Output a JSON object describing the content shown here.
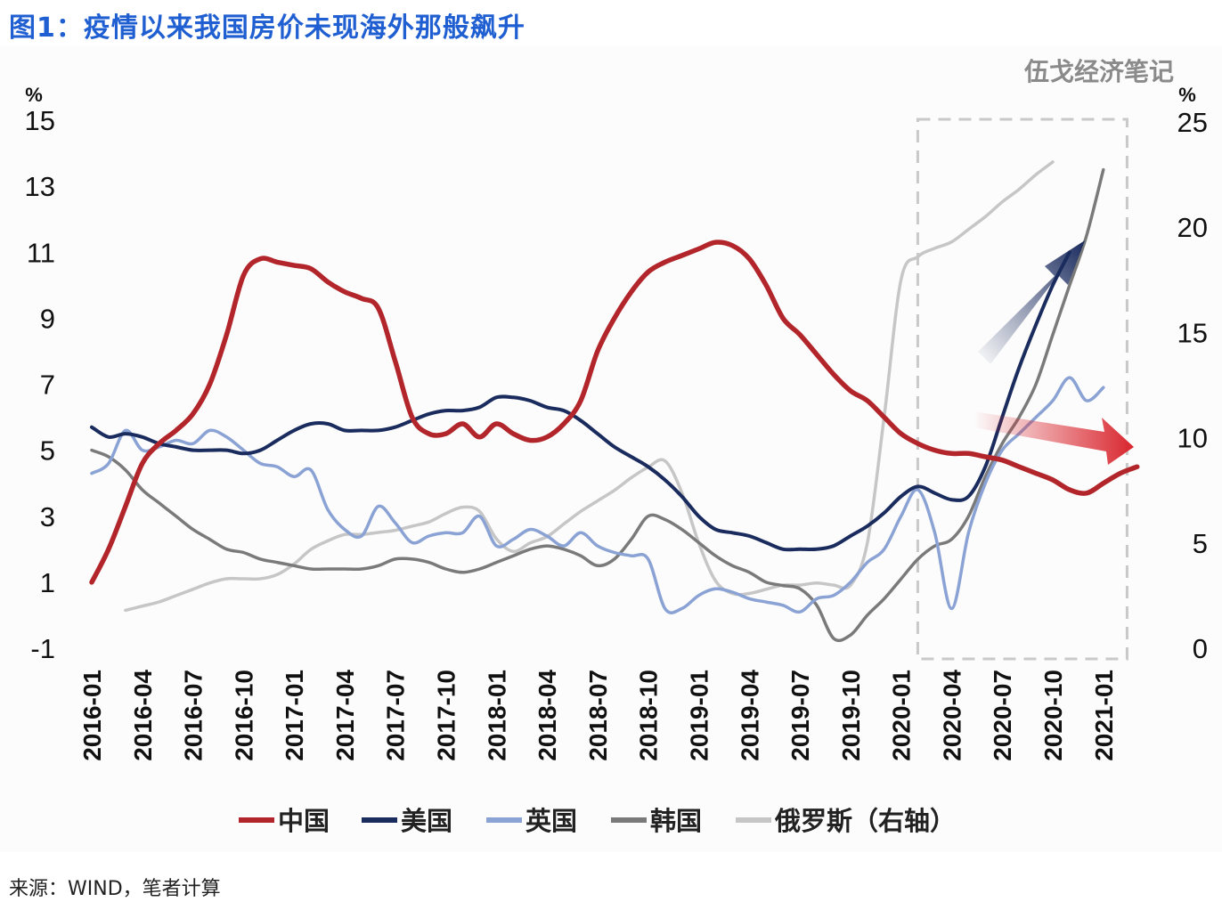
{
  "figure": {
    "title": "图1：疫情以来我国房价未现海外那般飙升",
    "source": "来源：WIND，笔者计算",
    "watermark": "伍戈经济笔记"
  },
  "chart_data": {
    "type": "line",
    "left_axis": {
      "unit": "%",
      "ticks": [
        "15",
        "13",
        "11",
        "9",
        "7",
        "5",
        "3",
        "1",
        "-1"
      ],
      "ylim": [
        -1,
        15
      ]
    },
    "right_axis": {
      "unit": "%",
      "ticks": [
        "25",
        "20",
        "15",
        "10",
        "5",
        "0"
      ],
      "ylim": [
        0,
        25
      ]
    },
    "x_ticks": [
      "2016-01",
      "2016-04",
      "2016-07",
      "2016-10",
      "2017-01",
      "2017-04",
      "2017-07",
      "2017-10",
      "2018-01",
      "2018-04",
      "2018-07",
      "2018-10",
      "2019-01",
      "2019-04",
      "2019-07",
      "2019-10",
      "2020-01",
      "2020-04",
      "2020-07",
      "2020-10",
      "2021-01"
    ],
    "series": [
      {
        "name": "中国",
        "axis": "left",
        "color": "#b2262b",
        "width": 5.5,
        "points": [
          [
            0,
            1.0
          ],
          [
            1,
            2.0
          ],
          [
            2,
            3.3
          ],
          [
            3,
            4.6
          ],
          [
            4,
            5.2
          ],
          [
            5,
            5.6
          ],
          [
            6,
            6.1
          ],
          [
            7,
            7.0
          ],
          [
            8,
            8.5
          ],
          [
            9,
            10.3
          ],
          [
            10,
            10.8
          ],
          [
            11,
            10.7
          ],
          [
            12,
            10.6
          ],
          [
            13,
            10.5
          ],
          [
            14,
            10.1
          ],
          [
            15,
            9.8
          ],
          [
            16,
            9.6
          ],
          [
            17,
            9.3
          ],
          [
            18,
            7.7
          ],
          [
            19,
            6.0
          ],
          [
            20,
            5.5
          ],
          [
            21,
            5.5
          ],
          [
            22,
            5.8
          ],
          [
            23,
            5.4
          ],
          [
            24,
            5.8
          ],
          [
            25,
            5.5
          ],
          [
            26,
            5.3
          ],
          [
            27,
            5.4
          ],
          [
            28,
            5.8
          ],
          [
            29,
            6.5
          ],
          [
            30,
            8.0
          ],
          [
            31,
            9.0
          ],
          [
            32,
            9.8
          ],
          [
            33,
            10.4
          ],
          [
            34,
            10.7
          ],
          [
            35,
            10.9
          ],
          [
            36,
            11.1
          ],
          [
            37,
            11.3
          ],
          [
            38,
            11.2
          ],
          [
            39,
            10.8
          ],
          [
            40,
            10.0
          ],
          [
            41,
            9.0
          ],
          [
            42,
            8.5
          ],
          [
            43,
            7.9
          ],
          [
            44,
            7.3
          ],
          [
            45,
            6.8
          ],
          [
            46,
            6.5
          ],
          [
            47,
            6.0
          ],
          [
            48,
            5.5
          ],
          [
            49,
            5.2
          ],
          [
            50,
            5.0
          ],
          [
            51,
            4.9
          ],
          [
            52,
            4.9
          ],
          [
            53,
            4.8
          ],
          [
            54,
            4.7
          ],
          [
            55,
            4.5
          ],
          [
            56,
            4.3
          ],
          [
            57,
            4.1
          ],
          [
            58,
            3.8
          ],
          [
            59,
            3.7
          ],
          [
            60,
            4.0
          ],
          [
            61,
            4.3
          ],
          [
            62,
            4.5
          ]
        ]
      },
      {
        "name": "美国",
        "axis": "left",
        "color": "#1a2b5e",
        "width": 4,
        "points": [
          [
            0,
            5.7
          ],
          [
            1,
            5.4
          ],
          [
            2,
            5.5
          ],
          [
            3,
            5.4
          ],
          [
            4,
            5.2
          ],
          [
            5,
            5.1
          ],
          [
            6,
            5.0
          ],
          [
            7,
            5.0
          ],
          [
            8,
            5.0
          ],
          [
            9,
            4.9
          ],
          [
            10,
            5.0
          ],
          [
            11,
            5.3
          ],
          [
            12,
            5.6
          ],
          [
            13,
            5.8
          ],
          [
            14,
            5.8
          ],
          [
            15,
            5.6
          ],
          [
            16,
            5.6
          ],
          [
            17,
            5.6
          ],
          [
            18,
            5.7
          ],
          [
            19,
            5.9
          ],
          [
            20,
            6.1
          ],
          [
            21,
            6.2
          ],
          [
            22,
            6.2
          ],
          [
            23,
            6.3
          ],
          [
            24,
            6.6
          ],
          [
            25,
            6.6
          ],
          [
            26,
            6.5
          ],
          [
            27,
            6.3
          ],
          [
            28,
            6.2
          ],
          [
            29,
            5.9
          ],
          [
            30,
            5.5
          ],
          [
            31,
            5.1
          ],
          [
            32,
            4.8
          ],
          [
            33,
            4.5
          ],
          [
            34,
            4.1
          ],
          [
            35,
            3.6
          ],
          [
            36,
            3.0
          ],
          [
            37,
            2.6
          ],
          [
            38,
            2.5
          ],
          [
            39,
            2.4
          ],
          [
            40,
            2.2
          ],
          [
            41,
            2.0
          ],
          [
            42,
            2.0
          ],
          [
            43,
            2.0
          ],
          [
            44,
            2.1
          ],
          [
            45,
            2.4
          ],
          [
            46,
            2.7
          ],
          [
            47,
            3.1
          ],
          [
            48,
            3.6
          ],
          [
            49,
            3.9
          ],
          [
            50,
            3.7
          ],
          [
            51,
            3.5
          ],
          [
            52,
            3.6
          ],
          [
            53,
            4.5
          ],
          [
            54,
            6.0
          ],
          [
            55,
            7.5
          ],
          [
            56,
            8.8
          ],
          [
            57,
            10.0
          ],
          [
            58,
            11.0
          ]
        ]
      },
      {
        "name": "英国",
        "axis": "left",
        "color": "#8aa2d4",
        "width": 3.5,
        "points": [
          [
            0,
            4.3
          ],
          [
            1,
            4.6
          ],
          [
            2,
            5.6
          ],
          [
            3,
            5.0
          ],
          [
            4,
            5.1
          ],
          [
            5,
            5.3
          ],
          [
            6,
            5.2
          ],
          [
            7,
            5.6
          ],
          [
            8,
            5.4
          ],
          [
            9,
            5.0
          ],
          [
            10,
            4.6
          ],
          [
            11,
            4.5
          ],
          [
            12,
            4.2
          ],
          [
            13,
            4.4
          ],
          [
            14,
            3.2
          ],
          [
            15,
            2.6
          ],
          [
            16,
            2.4
          ],
          [
            17,
            3.3
          ],
          [
            18,
            2.8
          ],
          [
            19,
            2.2
          ],
          [
            20,
            2.4
          ],
          [
            21,
            2.5
          ],
          [
            22,
            2.5
          ],
          [
            23,
            3.0
          ],
          [
            24,
            2.1
          ],
          [
            25,
            2.3
          ],
          [
            26,
            2.6
          ],
          [
            27,
            2.4
          ],
          [
            28,
            2.1
          ],
          [
            29,
            2.5
          ],
          [
            30,
            2.1
          ],
          [
            31,
            1.9
          ],
          [
            32,
            1.8
          ],
          [
            33,
            1.7
          ],
          [
            34,
            0.2
          ],
          [
            35,
            0.2
          ],
          [
            36,
            0.6
          ],
          [
            37,
            0.8
          ],
          [
            38,
            0.7
          ],
          [
            39,
            0.5
          ],
          [
            40,
            0.4
          ],
          [
            41,
            0.3
          ],
          [
            42,
            0.1
          ],
          [
            43,
            0.5
          ],
          [
            44,
            0.6
          ],
          [
            45,
            1.0
          ],
          [
            46,
            1.6
          ],
          [
            47,
            2.0
          ],
          [
            48,
            3.0
          ],
          [
            49,
            3.8
          ],
          [
            50,
            2.5
          ],
          [
            51,
            0.2
          ],
          [
            52,
            2.5
          ],
          [
            53,
            4.0
          ],
          [
            54,
            5.0
          ],
          [
            55,
            5.5
          ],
          [
            56,
            6.0
          ],
          [
            57,
            6.5
          ],
          [
            58,
            7.2
          ],
          [
            59,
            6.5
          ],
          [
            60,
            6.9
          ]
        ]
      },
      {
        "name": "韩国",
        "axis": "left",
        "color": "#7a7a7a",
        "width": 3.5,
        "points": [
          [
            0,
            5.0
          ],
          [
            1,
            4.8
          ],
          [
            2,
            4.4
          ],
          [
            3,
            3.8
          ],
          [
            4,
            3.4
          ],
          [
            5,
            3.0
          ],
          [
            6,
            2.6
          ],
          [
            7,
            2.3
          ],
          [
            8,
            2.0
          ],
          [
            9,
            1.9
          ],
          [
            10,
            1.7
          ],
          [
            11,
            1.6
          ],
          [
            12,
            1.5
          ],
          [
            13,
            1.4
          ],
          [
            14,
            1.4
          ],
          [
            15,
            1.4
          ],
          [
            16,
            1.4
          ],
          [
            17,
            1.5
          ],
          [
            18,
            1.7
          ],
          [
            19,
            1.7
          ],
          [
            20,
            1.6
          ],
          [
            21,
            1.4
          ],
          [
            22,
            1.3
          ],
          [
            23,
            1.4
          ],
          [
            24,
            1.6
          ],
          [
            25,
            1.8
          ],
          [
            26,
            2.0
          ],
          [
            27,
            2.1
          ],
          [
            28,
            2.0
          ],
          [
            29,
            1.8
          ],
          [
            30,
            1.5
          ],
          [
            31,
            1.7
          ],
          [
            32,
            2.3
          ],
          [
            33,
            3.0
          ],
          [
            34,
            2.9
          ],
          [
            35,
            2.6
          ],
          [
            36,
            2.2
          ],
          [
            37,
            1.8
          ],
          [
            38,
            1.5
          ],
          [
            39,
            1.3
          ],
          [
            40,
            1.0
          ],
          [
            41,
            0.9
          ],
          [
            42,
            0.8
          ],
          [
            43,
            0.3
          ],
          [
            44,
            -0.7
          ],
          [
            45,
            -0.6
          ],
          [
            46,
            0.0
          ],
          [
            47,
            0.5
          ],
          [
            48,
            1.1
          ],
          [
            49,
            1.7
          ],
          [
            50,
            2.1
          ],
          [
            51,
            2.3
          ],
          [
            52,
            3.0
          ],
          [
            53,
            4.2
          ],
          [
            54,
            5.2
          ],
          [
            55,
            6.0
          ],
          [
            56,
            7.0
          ],
          [
            57,
            8.5
          ],
          [
            58,
            10.0
          ],
          [
            59,
            11.5
          ],
          [
            60,
            13.5
          ]
        ]
      },
      {
        "name": "俄罗斯（右轴）",
        "axis": "right",
        "color": "#c6c6c6",
        "width": 3.5,
        "points": [
          [
            2,
            1.8
          ],
          [
            3,
            2.0
          ],
          [
            4,
            2.2
          ],
          [
            5,
            2.5
          ],
          [
            6,
            2.8
          ],
          [
            7,
            3.1
          ],
          [
            8,
            3.3
          ],
          [
            9,
            3.3
          ],
          [
            10,
            3.3
          ],
          [
            11,
            3.5
          ],
          [
            12,
            4.0
          ],
          [
            13,
            4.7
          ],
          [
            14,
            5.1
          ],
          [
            15,
            5.4
          ],
          [
            16,
            5.4
          ],
          [
            17,
            5.5
          ],
          [
            18,
            5.6
          ],
          [
            19,
            5.8
          ],
          [
            20,
            6.0
          ],
          [
            21,
            6.4
          ],
          [
            22,
            6.7
          ],
          [
            23,
            6.5
          ],
          [
            24,
            5.2
          ],
          [
            25,
            4.6
          ],
          [
            26,
            5.0
          ],
          [
            27,
            5.3
          ],
          [
            28,
            5.9
          ],
          [
            29,
            6.5
          ],
          [
            30,
            7.0
          ],
          [
            31,
            7.5
          ],
          [
            32,
            8.1
          ],
          [
            33,
            8.6
          ],
          [
            34,
            8.9
          ],
          [
            35,
            7.4
          ],
          [
            36,
            5.0
          ],
          [
            37,
            3.2
          ],
          [
            38,
            2.6
          ],
          [
            39,
            2.6
          ],
          [
            40,
            2.8
          ],
          [
            41,
            3.0
          ],
          [
            42,
            3.0
          ],
          [
            43,
            3.1
          ],
          [
            44,
            3.0
          ],
          [
            45,
            3.0
          ],
          [
            46,
            5.0
          ],
          [
            47,
            11.0
          ],
          [
            48,
            17.5
          ],
          [
            49,
            18.6
          ],
          [
            50,
            19.0
          ],
          [
            51,
            19.3
          ],
          [
            52,
            19.9
          ],
          [
            53,
            20.5
          ],
          [
            54,
            21.2
          ],
          [
            55,
            21.8
          ],
          [
            56,
            22.5
          ],
          [
            57,
            23.1
          ]
        ]
      }
    ],
    "legend": {
      "placement": "bottom"
    }
  }
}
